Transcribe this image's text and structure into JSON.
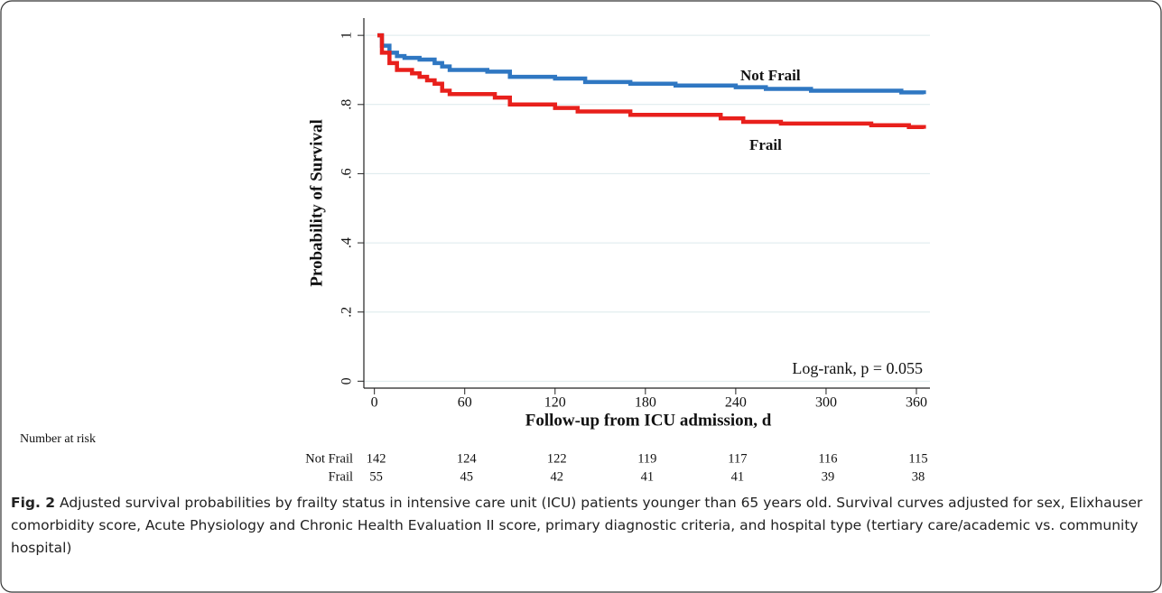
{
  "chart_data": {
    "type": "step-line",
    "ylabel": "Probability of Survival",
    "xlabel": "Follow-up from ICU admission, d",
    "xlim": [
      -7,
      369
    ],
    "ylim": [
      -0.02,
      1.05
    ],
    "xticks": [
      0,
      60,
      120,
      180,
      240,
      300,
      360
    ],
    "yticks": [
      0,
      {
        "value": 0.2,
        "label": ".2"
      },
      {
        "value": 0.4,
        "label": ".4"
      },
      {
        "value": 0.6,
        "label": ".6"
      },
      {
        "value": 0.8,
        "label": ".8"
      },
      1
    ],
    "grid": true,
    "series": [
      {
        "name": "Not Frail",
        "color": "#2f77c2",
        "x": [
          2,
          5,
          10,
          15,
          20,
          30,
          40,
          45,
          50,
          75,
          90,
          120,
          140,
          170,
          200,
          240,
          260,
          290,
          340,
          350,
          365
        ],
        "values": [
          1.0,
          0.97,
          0.95,
          0.94,
          0.935,
          0.93,
          0.92,
          0.91,
          0.9,
          0.895,
          0.88,
          0.875,
          0.865,
          0.86,
          0.855,
          0.85,
          0.845,
          0.84,
          0.84,
          0.835,
          0.83
        ]
      },
      {
        "name": "Frail",
        "color": "#e8201c",
        "x": [
          2,
          5,
          10,
          15,
          25,
          30,
          35,
          40,
          45,
          50,
          80,
          90,
          120,
          135,
          170,
          230,
          245,
          270,
          330,
          355,
          365
        ],
        "values": [
          1.0,
          0.95,
          0.92,
          0.9,
          0.89,
          0.88,
          0.87,
          0.86,
          0.84,
          0.83,
          0.82,
          0.8,
          0.79,
          0.78,
          0.77,
          0.76,
          0.75,
          0.745,
          0.74,
          0.735,
          0.73
        ]
      }
    ],
    "annotation": "Log-rank, p = 0.055",
    "risk_table": {
      "title": "Number at risk",
      "rows": [
        {
          "name": "Not Frail",
          "values": [
            142,
            124,
            122,
            119,
            117,
            116,
            115
          ]
        },
        {
          "name": "Frail",
          "values": [
            55,
            45,
            42,
            41,
            41,
            39,
            38
          ]
        }
      ]
    }
  },
  "caption": {
    "label": "Fig. 2",
    "text": "Adjusted survival probabilities by frailty status in intensive care unit (ICU) patients younger than 65 years old. Survival curves adjusted for sex, Elixhauser comorbidity score, Acute Physiology and Chronic Health Evaluation II score, primary diagnostic criteria, and hospital type (tertiary care/academic vs. community hospital)"
  }
}
